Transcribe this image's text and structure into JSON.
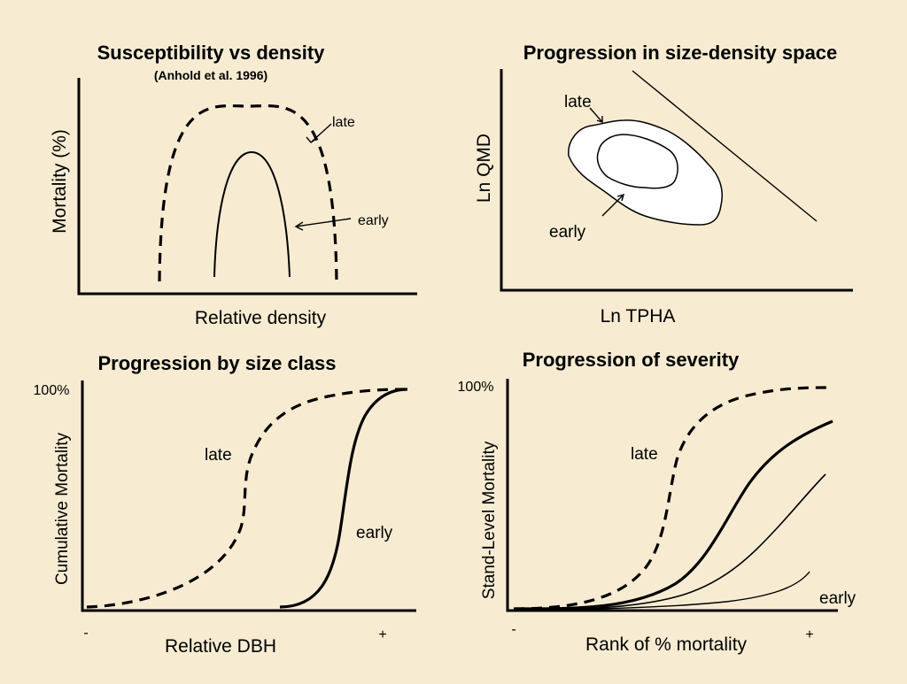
{
  "background_color": "#f7ecd2",
  "panels": {
    "top_left": {
      "title": "Susceptibility vs density",
      "subtitle": "(Anhold et al. 1996)",
      "ylabel": "Mortality (%)",
      "xlabel": "Relative density",
      "label_late": "late",
      "label_early": "early"
    },
    "top_right": {
      "title": "Progression in size-density space",
      "ylabel": "Ln QMD",
      "xlabel": "Ln TPHA",
      "label_late": "late",
      "label_early": "early"
    },
    "bottom_left": {
      "title": "Progression by size class",
      "ylabel": "Cumulative Mortality",
      "xlabel": "Relative DBH",
      "y_top_tick": "100%",
      "x_min_tick": "-",
      "x_max_tick": "+",
      "label_late": "late",
      "label_early": "early"
    },
    "bottom_right": {
      "title": "Progression of severity",
      "ylabel": "Stand-Level Mortality",
      "xlabel": "Rank of % mortality",
      "y_top_tick": "100%",
      "x_min_tick": "-",
      "x_max_tick": "+",
      "label_late": "late",
      "label_early": "early"
    }
  }
}
